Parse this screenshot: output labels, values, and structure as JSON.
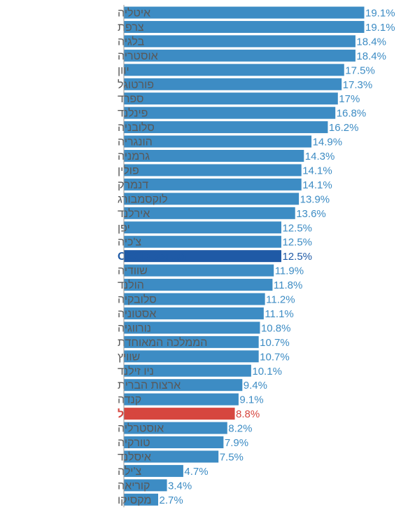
{
  "chart_data": {
    "type": "bar",
    "orientation": "horizontal",
    "xlim": [
      0,
      19.1
    ],
    "grid": false,
    "legend": "none",
    "value_suffix": "%",
    "colors": {
      "default": "#3d8cc4",
      "oecd": "#1f5aa6",
      "israel": "#d6463f",
      "default_label": "#3d8cc4",
      "category_label": "#595959",
      "axis": "#9a9a9a"
    },
    "bars": [
      {
        "category": "איטליה",
        "value": 19.1,
        "label": "19.1%"
      },
      {
        "category": "צרפת",
        "value": 19.1,
        "label": "19.1%"
      },
      {
        "category": "בלגיה",
        "value": 18.4,
        "label": "18.4%"
      },
      {
        "category": "אוסטריה",
        "value": 18.4,
        "label": "18.4%"
      },
      {
        "category": "יוון",
        "value": 17.5,
        "label": "17.5%"
      },
      {
        "category": "פורטוגל",
        "value": 17.3,
        "label": "17.3%"
      },
      {
        "category": "ספרד",
        "value": 17,
        "label": "17%"
      },
      {
        "category": "פינלנד",
        "value": 16.8,
        "label": "16.8%"
      },
      {
        "category": "סלובניה",
        "value": 16.2,
        "label": "16.2%"
      },
      {
        "category": "הונגריה",
        "value": 14.9,
        "label": "14.9%"
      },
      {
        "category": "גרמניה",
        "value": 14.3,
        "label": "14.3%"
      },
      {
        "category": "פולין",
        "value": 14.1,
        "label": "14.1%"
      },
      {
        "category": "דנמרק",
        "value": 14.1,
        "label": "14.1%"
      },
      {
        "category": "לוקסמבורג",
        "value": 13.9,
        "label": "13.9%"
      },
      {
        "category": "אירלנד",
        "value": 13.6,
        "label": "13.6%"
      },
      {
        "category": "יפן",
        "value": 12.5,
        "label": "12.5%"
      },
      {
        "category": "צ'כיה",
        "value": 12.5,
        "label": "12.5%"
      },
      {
        "category": "ממוצע OECD",
        "value": 12.5,
        "label": "12.5%",
        "highlight": "oecd"
      },
      {
        "category": "שוודיה",
        "value": 11.9,
        "label": "11.9%"
      },
      {
        "category": "הולנד",
        "value": 11.8,
        "label": "11.8%"
      },
      {
        "category": "סלובקיה",
        "value": 11.2,
        "label": "11.2%"
      },
      {
        "category": "אסטוניה",
        "value": 11.1,
        "label": "11.1%"
      },
      {
        "category": "נורווגיה",
        "value": 10.8,
        "label": "10.8%"
      },
      {
        "category": "הממלכה המאוחדת",
        "value": 10.7,
        "label": "10.7%"
      },
      {
        "category": "שוויץ",
        "value": 10.7,
        "label": "10.7%"
      },
      {
        "category": "ניו זילנד",
        "value": 10.1,
        "label": "10.1%"
      },
      {
        "category": "ארצות הברית",
        "value": 9.4,
        "label": "9.4%"
      },
      {
        "category": "קנדה",
        "value": 9.1,
        "label": "9.1%"
      },
      {
        "category": "ישראל",
        "value": 8.8,
        "label": "8.8%",
        "highlight": "israel"
      },
      {
        "category": "אוסטרליה",
        "value": 8.2,
        "label": "8.2%"
      },
      {
        "category": "טורקיה",
        "value": 7.9,
        "label": "7.9%"
      },
      {
        "category": "איסלנד",
        "value": 7.5,
        "label": "7.5%"
      },
      {
        "category": "צ'ילה",
        "value": 4.7,
        "label": "4.7%"
      },
      {
        "category": "קוריאה",
        "value": 3.4,
        "label": "3.4%"
      },
      {
        "category": "מקסיקו",
        "value": 2.7,
        "label": "2.7%"
      }
    ]
  }
}
